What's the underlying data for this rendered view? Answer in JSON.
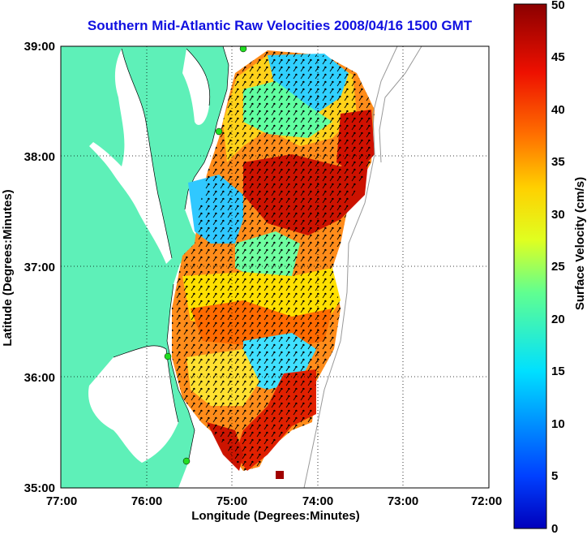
{
  "title": "Southern Mid-Atlantic Raw Velocities 2008/04/16 1500 GMT",
  "x_axis": {
    "label": "Longitude (Degrees:Minutes)",
    "ticks": [
      "77:00",
      "76:00",
      "75:00",
      "74:00",
      "73:00",
      "72:00"
    ]
  },
  "y_axis": {
    "label": "Latitude (Degrees:Minutes)",
    "ticks": [
      "39:00",
      "38:00",
      "37:00",
      "36:00",
      "35:00"
    ]
  },
  "colorbar": {
    "label": "Surface Velocity (cm/s)",
    "ticks": [
      "50",
      "45",
      "40",
      "35",
      "30",
      "25",
      "20",
      "15",
      "10",
      "5",
      "0"
    ],
    "min": 0,
    "max": 50
  },
  "colors": {
    "land": "#5ef0b8",
    "title": "#1010e0",
    "station": "#22dd22"
  }
}
